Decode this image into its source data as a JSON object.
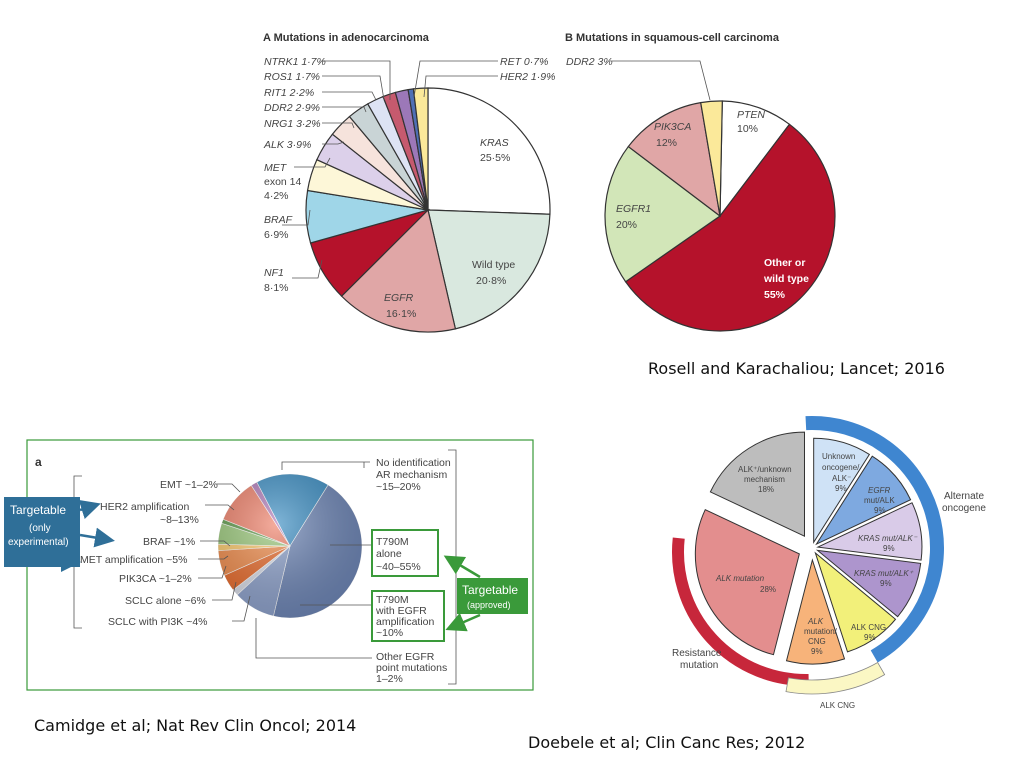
{
  "chart_data": [
    {
      "type": "pie",
      "title": "A  Mutations in adenocarcinoma",
      "slices": [
        {
          "label": "KRAS",
          "value_text": "25·5%",
          "value": 25.5,
          "color": "#ffffff"
        },
        {
          "label": "Wild type",
          "value_text": "20·8%",
          "value": 20.8,
          "color": "#d9e8df"
        },
        {
          "label": "EGFR",
          "value_text": "16·1%",
          "value": 16.1,
          "color": "#e0a6a6"
        },
        {
          "label": "NF1",
          "value_text": "8·1%",
          "value": 8.1,
          "color": "#b5122b"
        },
        {
          "label": "BRAF",
          "value_text": "6·9%",
          "value": 6.9,
          "color": "#9fd6e8"
        },
        {
          "label": "MET exon 14",
          "value_text": "4·2%",
          "value": 4.2,
          "color": "#fdf7d8"
        },
        {
          "label": "ALK",
          "value_text": "3·9%",
          "value": 3.9,
          "color": "#dcd0ea"
        },
        {
          "label": "NRG1",
          "value_text": "3·2%",
          "value": 3.2,
          "color": "#f6e3dc"
        },
        {
          "label": "DDR2",
          "value_text": "2·9%",
          "value": 2.9,
          "color": "#c9d4d6"
        },
        {
          "label": "RIT1",
          "value_text": "2·2%",
          "value": 2.2,
          "color": "#dde3f4"
        },
        {
          "label": "ROS1",
          "value_text": "1·7%",
          "value": 1.7,
          "color": "#c65a6e"
        },
        {
          "label": "NTRK1",
          "value_text": "1·7%",
          "value": 1.7,
          "color": "#9c78b8"
        },
        {
          "label": "RET",
          "value_text": "0·7%",
          "value": 0.7,
          "color": "#4f6fb5"
        },
        {
          "label": "HER2",
          "value_text": "1·9%",
          "value": 1.9,
          "color": "#fbe99a"
        }
      ]
    },
    {
      "type": "pie",
      "title": "B  Mutations in squamous-cell carcinoma",
      "slices": [
        {
          "label": "PTEN",
          "value_text": "10%",
          "value": 10,
          "color": "#ffffff"
        },
        {
          "label": "Other or wild type",
          "value_text": "55%",
          "value": 55,
          "color": "#b5122b"
        },
        {
          "label": "EGFR1",
          "value_text": "20%",
          "value": 20,
          "color": "#d2e6b8"
        },
        {
          "label": "PIK3CA",
          "value_text": "12%",
          "value": 12,
          "color": "#e0a6a6"
        },
        {
          "label": "DDR2",
          "value_text": "3%",
          "value": 3,
          "color": "#fbe99a"
        }
      ]
    },
    {
      "type": "pie",
      "title": "a",
      "slices": [
        {
          "label": "No identification AR mechanism ~15–20%",
          "value": 17.5,
          "color": "#3d8fc4"
        },
        {
          "label": "T790M alone ~40–55%",
          "value": 47.5,
          "color": "#6e86b6"
        },
        {
          "label": "T790M with EGFR amplification ~10%",
          "value": 10,
          "color": "#8ea2cc"
        },
        {
          "label": "Other EGFR point mutations 1–2%",
          "value": 1.5,
          "color": "#d9dde8"
        },
        {
          "label": "SCLC with PI3K ~4%",
          "value": 4,
          "color": "#e86a2a"
        },
        {
          "label": "SCLC alone ~6%",
          "value": 6,
          "color": "#f08b4a"
        },
        {
          "label": "PIK3CA ~1–2%",
          "value": 1.5,
          "color": "#fbc86a"
        },
        {
          "label": "MET amplification ~5%",
          "value": 5,
          "color": "#9ac87a"
        },
        {
          "label": "BRAF ~1%",
          "value": 1,
          "color": "#5e9a4a"
        },
        {
          "label": "HER2 amplification ~8–13%",
          "value": 10.5,
          "color": "#ee7f68"
        },
        {
          "label": "EMT ~1–2%",
          "value": 1.5,
          "color": "#b07ab8"
        }
      ]
    },
    {
      "type": "pie",
      "title": "",
      "slices": [
        {
          "label": "Unknown oncogene/ ALK⁻ 9%",
          "value": 9,
          "color": "#cfe2f6"
        },
        {
          "label": "EGFR mut/ALK 9%",
          "value": 9,
          "color": "#7ea9e0"
        },
        {
          "label": "KRAS mut/ALK⁻ 9%",
          "value": 9,
          "color": "#d9cbe8"
        },
        {
          "label": "KRAS mut/ALK⁺ 9%",
          "value": 9,
          "color": "#ad95cd"
        },
        {
          "label": "ALK CNG 9%",
          "value": 9,
          "color": "#f2f07a"
        },
        {
          "label": "ALK mutation/ CNG 9%",
          "value": 9,
          "color": "#f7b37a"
        },
        {
          "label": "ALK mutation 28%",
          "value": 28,
          "color": "#e38e8e"
        },
        {
          "label": "ALK⁺/unknown mechanism 18%",
          "value": 18,
          "color": "#bdbdbd"
        }
      ]
    }
  ],
  "captions": {
    "rosell": "Rosell and Karachaliou; Lancet; 2016",
    "camidge": "Camidge et al; Nat Rev Clin Oncol; 2014",
    "doebele": "Doebele et al; Clin Canc Res; 2012"
  },
  "panel_a": {
    "title": "A  Mutations in adenocarcinoma",
    "labels": [
      "NTRK1 1·7%",
      "ROS1 1·7%",
      "RIT1 2·2%",
      "DDR2 2·9%",
      "NRG1 3·2%",
      "ALK 3·9%",
      "MET",
      "exon 14",
      "4·2%",
      "BRAF",
      "6·9%",
      "NF1",
      "8·1%",
      "RET 0·7%",
      "HER2 1·9%",
      "KRAS",
      "25·5%",
      "Wild type",
      "20·8%",
      "EGFR",
      "16·1%"
    ]
  },
  "panel_b": {
    "title": "B  Mutations in squamous-cell carcinoma",
    "labels": [
      "DDR2 3%",
      "PTEN",
      "10%",
      "PIK3CA",
      "12%",
      "EGFR1",
      "20%",
      "Other or",
      "wild type",
      "55%"
    ]
  },
  "panel_c": {
    "letter": "a",
    "left_labels": [
      "EMT ~1–2%",
      "HER2 amplification",
      "~8–13%",
      "BRAF ~1%",
      "MET amplification ~5%",
      "PIK3CA ~1–2%",
      "SCLC alone ~6%",
      "SCLC with PI3K ~4%"
    ],
    "right_labels": [
      "No identification",
      "AR mechanism",
      "~15–20%",
      "T790M",
      "alone",
      "~40–55%",
      "T790M",
      "with EGFR",
      "amplification",
      "~10%",
      "Other EGFR",
      "point mutations",
      "1–2%"
    ],
    "targetable_left": [
      "Targetable",
      "(only",
      "experimental)"
    ],
    "targetable_right": [
      "Targetable",
      "(approved)"
    ]
  },
  "panel_d": {
    "labels": [
      "Unknown",
      "oncogene/",
      "ALK⁻",
      "9%",
      "EGFR",
      "mut/ALK",
      "9%",
      "KRAS mut/ALK⁻",
      "9%",
      "KRAS mut/ALK⁺",
      "9%",
      "ALK CNG",
      "9%",
      "ALK",
      "mutation/",
      "CNG",
      "9%",
      "ALK mutation",
      "28%",
      "ALK⁺/unknown",
      "mechanism",
      "18%"
    ],
    "outer": [
      "Alternate",
      "oncogene",
      "Resistance",
      "mutation",
      "ALK CNG"
    ]
  },
  "colors": {
    "green_frame": "#3a9a3a",
    "blue_box": "#2f6f98",
    "dark_red": "#c7273b",
    "alt_blue": "#3f86d0"
  }
}
